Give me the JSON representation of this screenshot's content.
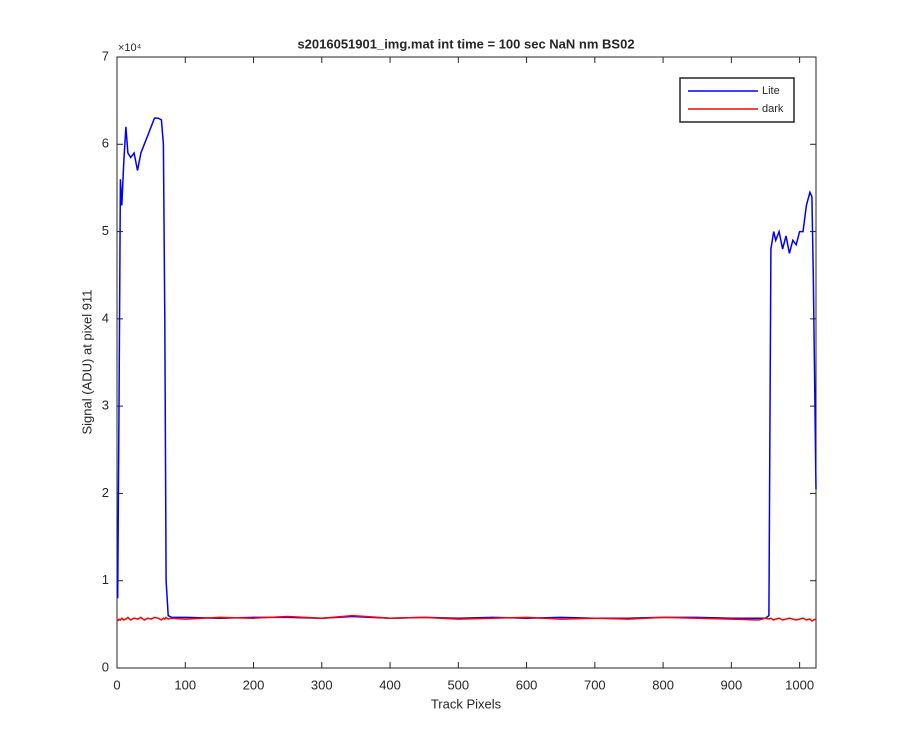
{
  "chart_data": {
    "type": "line",
    "title": "s2016051901_img.mat int time = 100 sec  NaN nm BS02",
    "x_label": "Track Pixels",
    "y_label": "Signal (ADU) at pixel 911",
    "y_scale_label": "×10⁴",
    "x": [
      1,
      3,
      5,
      7,
      10,
      13,
      16,
      20,
      25,
      30,
      35,
      40,
      45,
      50,
      55,
      60,
      65,
      68,
      70,
      72,
      75,
      80,
      100,
      150,
      200,
      250,
      300,
      345,
      400,
      450,
      500,
      550,
      600,
      650,
      700,
      750,
      800,
      850,
      900,
      940,
      950,
      955,
      958,
      962,
      965,
      970,
      975,
      980,
      985,
      990,
      995,
      1000,
      1005,
      1010,
      1015,
      1018,
      1020,
      1024
    ],
    "series": [
      {
        "name": "Lite",
        "color": "#0000ff",
        "values": [
          0.8,
          3.0,
          5.6,
          5.3,
          5.8,
          6.2,
          5.9,
          5.85,
          5.9,
          5.7,
          5.9,
          6.0,
          6.1,
          6.2,
          6.3,
          6.3,
          6.28,
          6.0,
          4.0,
          1.0,
          0.6,
          0.58,
          0.58,
          0.57,
          0.58,
          0.58,
          0.57,
          0.59,
          0.57,
          0.58,
          0.57,
          0.58,
          0.57,
          0.58,
          0.57,
          0.57,
          0.58,
          0.58,
          0.57,
          0.57,
          0.57,
          0.6,
          4.8,
          5.0,
          4.9,
          5.0,
          4.8,
          4.95,
          4.75,
          4.9,
          4.85,
          5.0,
          5.0,
          5.3,
          5.45,
          5.4,
          4.5,
          2.05
        ]
      },
      {
        "name": "dark",
        "color": "#ff0000",
        "values": [
          0.54,
          0.56,
          0.55,
          0.57,
          0.55,
          0.56,
          0.58,
          0.55,
          0.57,
          0.56,
          0.58,
          0.55,
          0.57,
          0.56,
          0.58,
          0.57,
          0.55,
          0.57,
          0.56,
          0.58,
          0.56,
          0.57,
          0.56,
          0.58,
          0.57,
          0.59,
          0.57,
          0.6,
          0.57,
          0.58,
          0.56,
          0.57,
          0.58,
          0.56,
          0.57,
          0.56,
          0.58,
          0.57,
          0.56,
          0.55,
          0.57,
          0.56,
          0.57,
          0.55,
          0.56,
          0.57,
          0.55,
          0.56,
          0.57,
          0.56,
          0.55,
          0.56,
          0.57,
          0.55,
          0.56,
          0.54,
          0.55,
          0.56
        ]
      }
    ],
    "xlim": [
      0,
      1024
    ],
    "xticks": [
      0,
      100,
      200,
      300,
      400,
      500,
      600,
      700,
      800,
      900,
      1000
    ],
    "ylim": [
      0,
      7
    ],
    "yticks": [
      0,
      1,
      2,
      3,
      4,
      5,
      6,
      7
    ],
    "legend": "northeast"
  }
}
